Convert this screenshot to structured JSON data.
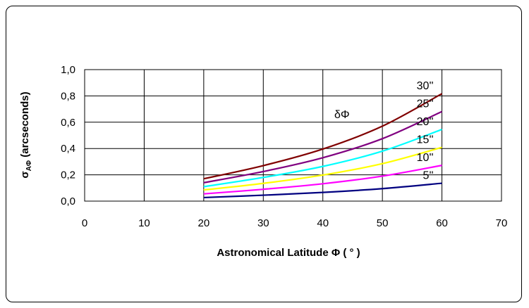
{
  "chart_data": {
    "type": "line",
    "xlabel": "Astronomical Latitude Φ ( ° )",
    "ylabel": {
      "main": "σ",
      "sub": "AΦ",
      "rest": " (arcseconds)"
    },
    "xlim": [
      0,
      70
    ],
    "ylim": [
      0,
      1.0
    ],
    "xticks": [
      0,
      10,
      20,
      30,
      40,
      50,
      60,
      70
    ],
    "xtick_labels": [
      "0",
      "10",
      "20",
      "30",
      "40",
      "50",
      "60",
      "70"
    ],
    "yticks": [
      0,
      0.2,
      0.4,
      0.6,
      0.8,
      1.0
    ],
    "ytick_labels": [
      "0,0",
      "0,2",
      "0,4",
      "0,6",
      "0,8",
      "1,0"
    ],
    "grid": true,
    "annotation": "δΦ",
    "x": [
      20,
      30,
      40,
      50,
      60
    ],
    "series": [
      {
        "name": "5''",
        "color": "#000080",
        "values": [
          0.027,
          0.045,
          0.066,
          0.095,
          0.136
        ]
      },
      {
        "name": "10''",
        "color": "#ff00ff",
        "values": [
          0.055,
          0.09,
          0.132,
          0.19,
          0.272
        ]
      },
      {
        "name": "15''",
        "color": "#ffff00",
        "values": [
          0.085,
          0.135,
          0.198,
          0.285,
          0.409
        ]
      },
      {
        "name": "20''",
        "color": "#00ffff",
        "values": [
          0.11,
          0.18,
          0.264,
          0.38,
          0.545
        ]
      },
      {
        "name": "25''",
        "color": "#800080",
        "values": [
          0.14,
          0.225,
          0.33,
          0.475,
          0.681
        ]
      },
      {
        "name": "30''",
        "color": "#800000",
        "values": [
          0.17,
          0.27,
          0.396,
          0.57,
          0.817
        ]
      }
    ]
  }
}
